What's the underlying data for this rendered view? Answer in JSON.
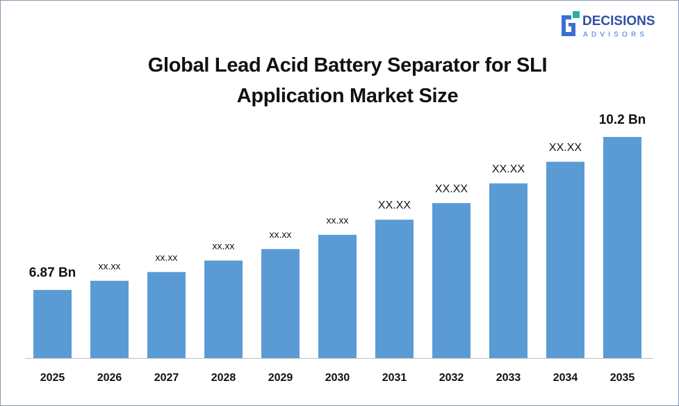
{
  "logo": {
    "name": "DECISIONS",
    "tagline": "ADVISORS"
  },
  "chart_data": {
    "type": "bar",
    "title": "Global Lead Acid Battery Separator for SLI Application Market Size",
    "categories": [
      "2025",
      "2026",
      "2027",
      "2028",
      "2029",
      "2030",
      "2031",
      "2032",
      "2033",
      "2034",
      "2035"
    ],
    "values": [
      6.87,
      7.07,
      7.26,
      7.51,
      7.76,
      8.07,
      8.4,
      8.76,
      9.19,
      9.66,
      10.2
    ],
    "value_labels": [
      "6.87 Bn",
      "xx.xx",
      "xx.xx",
      "xx.xx",
      "xx.xx",
      "xx.xx",
      "XX.XX",
      "XX.XX",
      "XX.XX",
      "XX.XX",
      "10.2 Bn"
    ],
    "color": "#5b9bd5"
  }
}
